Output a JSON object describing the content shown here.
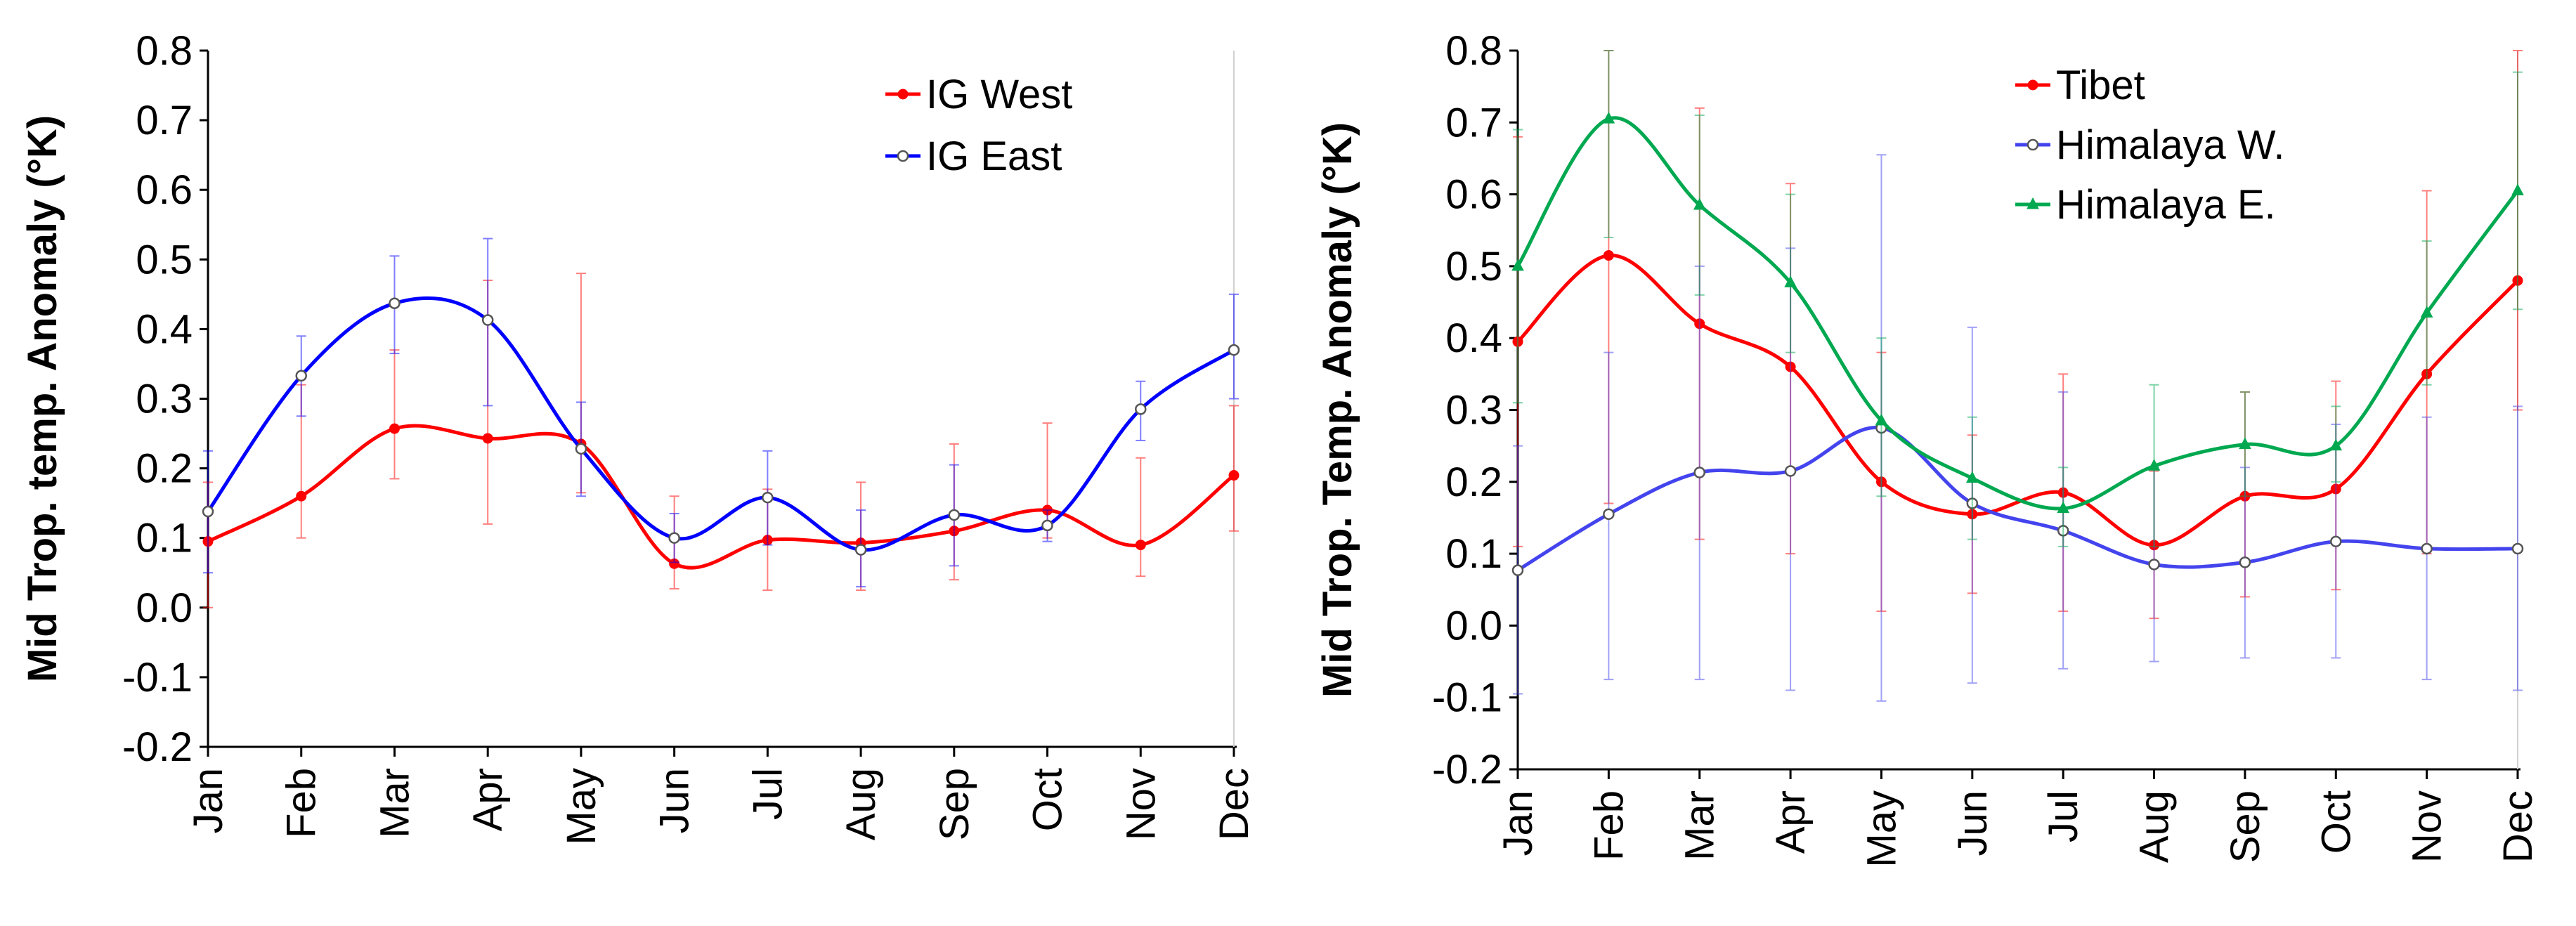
{
  "chart_data": [
    {
      "type": "line",
      "title": "",
      "xlabel": "",
      "ylabel": "Mid Trop. temp. Anomaly (°K)",
      "ylim": [
        -0.2,
        0.8
      ],
      "ytick_step": 0.1,
      "ytick_labels": [
        "-0.2",
        "-0.1",
        "0.0",
        "0.1",
        "0.2",
        "0.3",
        "0.4",
        "0.5",
        "0.6",
        "0.7",
        "0.8"
      ],
      "grid": false,
      "legend_position": "top-right",
      "categories": [
        "Jan",
        "Feb",
        "Mar",
        "Apr",
        "May",
        "Jun",
        "Jul",
        "Aug",
        "Sep",
        "Oct",
        "Nov",
        "Dec"
      ],
      "series": [
        {
          "name": "IG West",
          "color": "#ff0000",
          "marker": "filled-circle",
          "values": [
            0.095,
            0.16,
            0.257,
            0.243,
            0.235,
            0.063,
            0.097,
            0.093,
            0.11,
            0.14,
            0.09,
            0.19
          ],
          "error_low": [
            0.0,
            0.1,
            0.185,
            0.12,
            0.165,
            0.027,
            0.025,
            0.025,
            0.04,
            0.1,
            0.045,
            0.11
          ],
          "error_high": [
            0.18,
            0.32,
            0.37,
            0.47,
            0.48,
            0.16,
            0.17,
            0.18,
            0.235,
            0.265,
            0.215,
            0.29
          ]
        },
        {
          "name": "IG East",
          "color": "#0000ff",
          "marker": "open-circle",
          "values": [
            0.138,
            0.333,
            0.437,
            0.413,
            0.228,
            0.1,
            0.158,
            0.083,
            0.133,
            0.118,
            0.285,
            0.37
          ],
          "error_low": [
            0.05,
            0.275,
            0.365,
            0.29,
            0.16,
            0.065,
            0.09,
            0.03,
            0.06,
            0.095,
            0.24,
            0.3
          ],
          "error_high": [
            0.225,
            0.39,
            0.505,
            0.53,
            0.295,
            0.135,
            0.225,
            0.14,
            0.205,
            0.14,
            0.325,
            0.45
          ]
        }
      ]
    },
    {
      "type": "line",
      "title": "",
      "xlabel": "",
      "ylabel": "Mid Trop. Temp. Anomaly  (°K)",
      "ylim": [
        -0.2,
        0.8
      ],
      "ytick_step": 0.1,
      "ytick_labels": [
        "-0.2",
        "-0.1",
        "0.0",
        "0.1",
        "0.2",
        "0.3",
        "0.4",
        "0.5",
        "0.6",
        "0.7",
        "0.8"
      ],
      "grid": false,
      "legend_position": "top-right",
      "categories": [
        "Jan",
        "Feb",
        "Mar",
        "Apr",
        "May",
        "Jun",
        "Jul",
        "Aug",
        "Sep",
        "Oct",
        "Nov",
        "Dec"
      ],
      "series": [
        {
          "name": "Tibet",
          "color": "#ff0000",
          "marker": "filled-circle",
          "values": [
            0.395,
            0.515,
            0.42,
            0.36,
            0.2,
            0.155,
            0.185,
            0.112,
            0.18,
            0.19,
            0.35,
            0.48
          ],
          "error_low": [
            0.11,
            0.17,
            0.12,
            0.1,
            0.02,
            0.045,
            0.02,
            0.01,
            0.04,
            0.05,
            0.1,
            0.3
          ],
          "error_high": [
            0.68,
            0.8,
            0.72,
            0.615,
            0.38,
            0.265,
            0.35,
            0.215,
            0.325,
            0.34,
            0.605,
            0.8
          ]
        },
        {
          "name": "Himalaya W.",
          "color": "#4444ee",
          "marker": "open-circle",
          "values": [
            0.077,
            0.155,
            0.213,
            0.215,
            0.275,
            0.17,
            0.132,
            0.085,
            0.088,
            0.117,
            0.107,
            0.107
          ],
          "error_low": [
            -0.095,
            -0.075,
            -0.075,
            -0.09,
            -0.105,
            -0.08,
            -0.06,
            -0.05,
            -0.045,
            -0.045,
            -0.075,
            -0.09
          ],
          "error_high": [
            0.25,
            0.38,
            0.5,
            0.525,
            0.655,
            0.415,
            0.325,
            0.22,
            0.22,
            0.28,
            0.29,
            0.305
          ]
        },
        {
          "name": "Himalaya E.",
          "color": "#00a850",
          "marker": "filled-triangle",
          "values": [
            0.5,
            0.705,
            0.585,
            0.477,
            0.285,
            0.205,
            0.163,
            0.222,
            0.252,
            0.25,
            0.435,
            0.605
          ],
          "error_low": [
            0.31,
            0.54,
            0.46,
            0.38,
            0.18,
            0.12,
            0.11,
            0.11,
            0.18,
            0.2,
            0.335,
            0.44
          ],
          "error_high": [
            0.69,
            0.8,
            0.71,
            0.6,
            0.4,
            0.29,
            0.22,
            0.335,
            0.325,
            0.305,
            0.535,
            0.77
          ]
        }
      ]
    }
  ]
}
